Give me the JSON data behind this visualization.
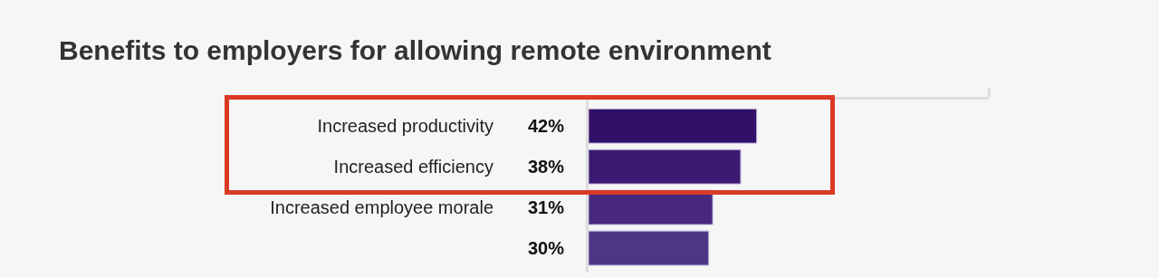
{
  "chart_data": {
    "type": "bar",
    "orientation": "horizontal",
    "title": "Benefits to employers for allowing remote environment",
    "categories": [
      "Increased productivity",
      "Increased efficiency",
      "Increased employee morale",
      null
    ],
    "values": [
      42,
      38,
      31,
      30
    ],
    "colors": [
      "#321068",
      "#3c1a72",
      "#48287c",
      "#4f3585"
    ],
    "value_labels": [
      "42%",
      "38%",
      "31%",
      "30%"
    ],
    "xlim": [
      0,
      100
    ],
    "xticks": [
      {
        "value": 100,
        "label": null
      }
    ],
    "tick_labels": "y"
  }
}
